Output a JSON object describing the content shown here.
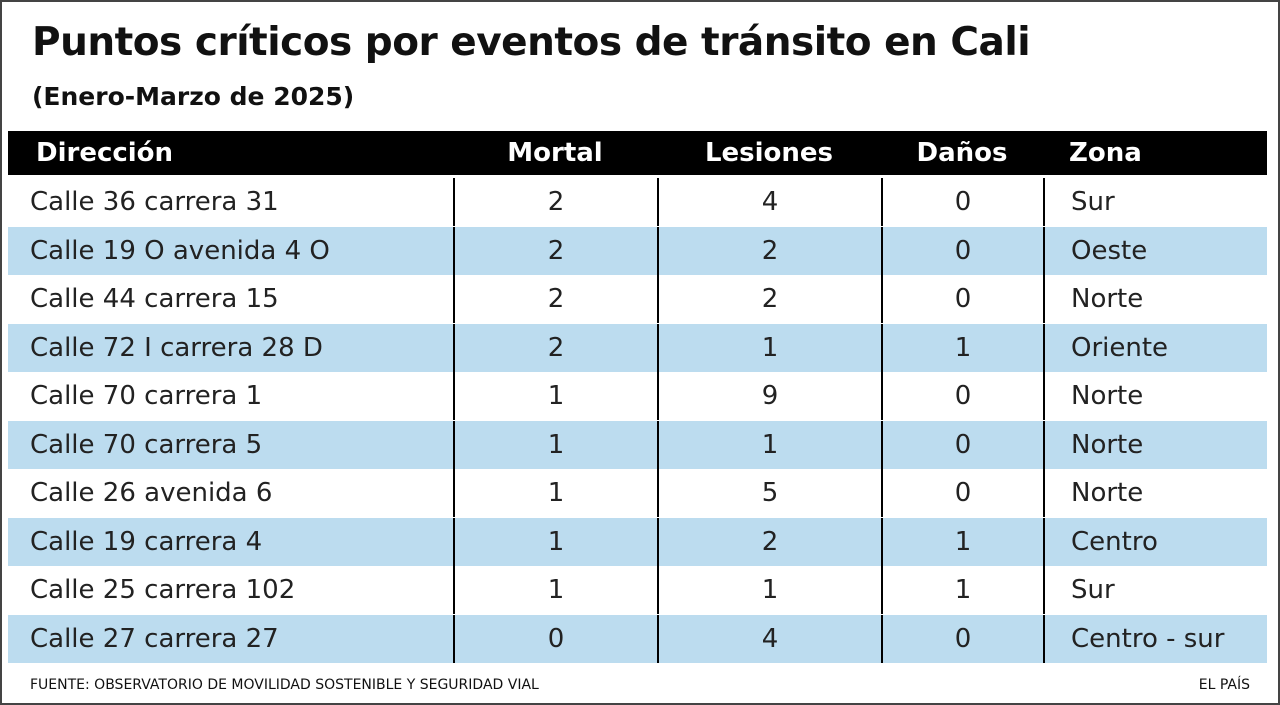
{
  "title": "Puntos críticos por eventos de tránsito en Cali",
  "subtitle": "(Enero-Marzo de 2025)",
  "table": {
    "header": [
      "Dirección",
      "Mortal",
      "Lesiones",
      "Daños",
      "Zona"
    ],
    "rows": [
      [
        "Calle 36 carrera 31",
        2,
        4,
        0,
        "Sur"
      ],
      [
        "Calle 19 O avenida 4 O",
        2,
        2,
        0,
        "Oeste"
      ],
      [
        "Calle 44 carrera 15",
        2,
        2,
        0,
        "Norte"
      ],
      [
        "Calle 72 I carrera 28 D",
        2,
        1,
        1,
        "Oriente"
      ],
      [
        "Calle 70 carrera 1",
        1,
        9,
        0,
        "Norte"
      ],
      [
        "Calle 70 carrera 5",
        1,
        1,
        0,
        "Norte"
      ],
      [
        "Calle 26 avenida 6",
        1,
        5,
        0,
        "Norte"
      ],
      [
        "Calle 19 carrera 4",
        1,
        2,
        1,
        "Centro"
      ],
      [
        "Calle 25 carrera 102",
        1,
        1,
        1,
        "Sur"
      ],
      [
        "Calle 27 carrera 27",
        0,
        4,
        0,
        "Centro - sur"
      ]
    ]
  },
  "footer": {
    "source": "FUENTE: OBSERVATORIO DE MOVILIDAD SOSTENIBLE Y SEGURIDAD VIAL",
    "brand": "EL PAÍS"
  }
}
